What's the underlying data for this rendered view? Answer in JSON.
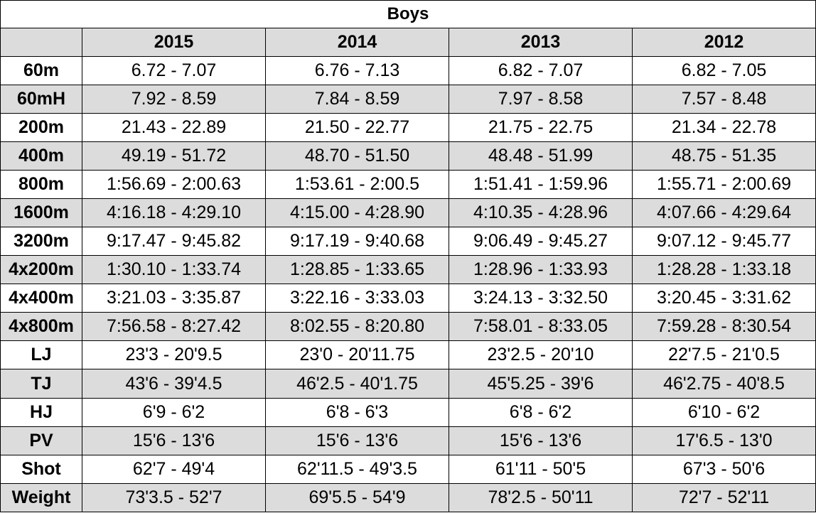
{
  "table": {
    "title": "Boys",
    "columns": [
      "2015",
      "2014",
      "2013",
      "2012"
    ],
    "rows": [
      [
        "60m",
        "6.72 - 7.07",
        "6.76 - 7.13",
        "6.82 - 7.07",
        "6.82 - 7.05"
      ],
      [
        "60mH",
        "7.92 - 8.59",
        "7.84 - 8.59",
        "7.97 - 8.58",
        "7.57 - 8.48"
      ],
      [
        "200m",
        "21.43 - 22.89",
        "21.50 - 22.77",
        "21.75 - 22.75",
        "21.34 - 22.78"
      ],
      [
        "400m",
        "49.19 - 51.72",
        "48.70 - 51.50",
        "48.48 - 51.99",
        "48.75 - 51.35"
      ],
      [
        "800m",
        "1:56.69 - 2:00.63",
        "1:53.61 - 2:00.5",
        "1:51.41 - 1:59.96",
        "1:55.71 - 2:00.69"
      ],
      [
        "1600m",
        "4:16.18 - 4:29.10",
        "4:15.00 - 4:28.90",
        "4:10.35 - 4:28.96",
        "4:07.66 - 4:29.64"
      ],
      [
        "3200m",
        "9:17.47 - 9:45.82",
        "9:17.19 - 9:40.68",
        "9:06.49 - 9:45.27",
        "9:07.12 - 9:45.77"
      ],
      [
        "4x200m",
        "1:30.10 - 1:33.74",
        "1:28.85 - 1:33.65",
        "1:28.96 - 1:33.93",
        "1:28.28 - 1:33.18"
      ],
      [
        "4x400m",
        "3:21.03 - 3:35.87",
        "3:22.16 - 3:33.03",
        "3:24.13 - 3:32.50",
        "3:20.45 - 3:31.62"
      ],
      [
        "4x800m",
        "7:56.58 - 8:27.42",
        "8:02.55 - 8:20.80",
        "7:58.01 - 8:33.05",
        "7:59.28 - 8:30.54"
      ],
      [
        "LJ",
        "23'3 - 20'9.5",
        "23'0 - 20'11.75",
        "23'2.5 - 20'10",
        "22'7.5 - 21'0.5"
      ],
      [
        "TJ",
        "43'6 - 39'4.5",
        "46'2.5 - 40'1.75",
        "45'5.25 - 39'6",
        "46'2.75 - 40'8.5"
      ],
      [
        "HJ",
        "6'9 - 6'2",
        "6'8 - 6'3",
        "6'8 - 6'2",
        "6'10 - 6'2"
      ],
      [
        "PV",
        "15'6 - 13'6",
        "15'6 - 13'6",
        "15'6 - 13'6",
        "17'6.5 - 13'0"
      ],
      [
        "Shot",
        "62'7 - 49'4",
        "62'11.5 - 49'3.5",
        "61'11 - 50'5",
        "67'3 - 50'6"
      ],
      [
        "Weight",
        "73'3.5 - 52'7",
        "69'5.5 - 54'9",
        "78'2.5 - 50'11",
        "72'7 - 52'11"
      ]
    ]
  }
}
